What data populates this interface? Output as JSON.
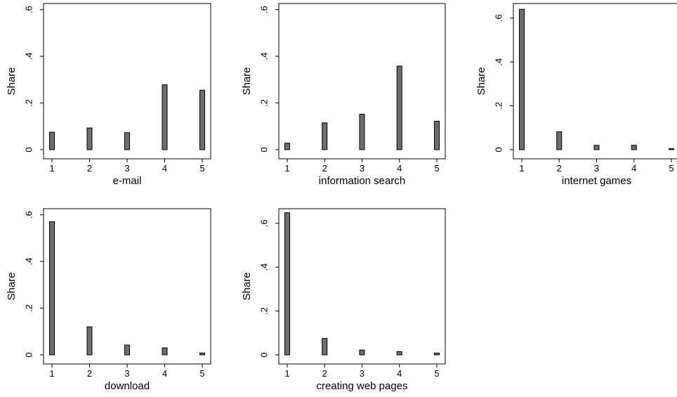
{
  "chart_data": [
    {
      "type": "bar",
      "xlabel": "e-mail",
      "ylabel": "Share",
      "categories": [
        "1",
        "2",
        "3",
        "4",
        "5"
      ],
      "values": [
        0.075,
        0.093,
        0.073,
        0.278,
        0.255
      ],
      "yticks": [
        {
          "v": 0,
          "label": "0"
        },
        {
          "v": 0.2,
          "label": ".2"
        },
        {
          "v": 0.4,
          "label": ".4"
        },
        {
          "v": 0.6,
          "label": ".6"
        }
      ],
      "ylim": [
        0,
        0.62
      ],
      "grid": false,
      "bar_color": "#6e6e6e"
    },
    {
      "type": "bar",
      "xlabel": "information search",
      "ylabel": "Share",
      "categories": [
        "1",
        "2",
        "3",
        "4",
        "5"
      ],
      "values": [
        0.028,
        0.115,
        0.152,
        0.358,
        0.122
      ],
      "yticks": [
        {
          "v": 0,
          "label": "0"
        },
        {
          "v": 0.2,
          "label": ".2"
        },
        {
          "v": 0.4,
          "label": ".4"
        },
        {
          "v": 0.6,
          "label": ".6"
        }
      ],
      "ylim": [
        0,
        0.62
      ],
      "grid": false,
      "bar_color": "#6e6e6e"
    },
    {
      "type": "bar",
      "xlabel": "internet games",
      "ylabel": "Share",
      "categories": [
        "1",
        "2",
        "3",
        "4",
        "5"
      ],
      "values": [
        0.64,
        0.082,
        0.02,
        0.02,
        0.005
      ],
      "yticks": [
        {
          "v": 0,
          "label": "0"
        },
        {
          "v": 0.2,
          "label": ".2"
        },
        {
          "v": 0.4,
          "label": ".4"
        },
        {
          "v": 0.6,
          "label": ".6"
        }
      ],
      "ylim": [
        0,
        0.66
      ],
      "grid": false,
      "bar_color": "#6e6e6e"
    },
    {
      "type": "bar",
      "xlabel": "download",
      "ylabel": "Share",
      "categories": [
        "1",
        "2",
        "3",
        "4",
        "5"
      ],
      "values": [
        0.57,
        0.12,
        0.042,
        0.03,
        0.008
      ],
      "yticks": [
        {
          "v": 0,
          "label": "0"
        },
        {
          "v": 0.2,
          "label": ".2"
        },
        {
          "v": 0.4,
          "label": ".4"
        },
        {
          "v": 0.6,
          "label": ".6"
        }
      ],
      "ylim": [
        0,
        0.62
      ],
      "grid": false,
      "bar_color": "#6e6e6e"
    },
    {
      "type": "bar",
      "xlabel": "creating web pages",
      "ylabel": "Share",
      "categories": [
        "1",
        "2",
        "3",
        "4",
        "5"
      ],
      "values": [
        0.648,
        0.075,
        0.022,
        0.015,
        0.008
      ],
      "yticks": [
        {
          "v": 0,
          "label": "0"
        },
        {
          "v": 0.2,
          "label": ".2"
        },
        {
          "v": 0.4,
          "label": ".4"
        },
        {
          "v": 0.6,
          "label": ".6"
        }
      ],
      "ylim": [
        0,
        0.66
      ],
      "grid": false,
      "bar_color": "#6e6e6e"
    }
  ]
}
